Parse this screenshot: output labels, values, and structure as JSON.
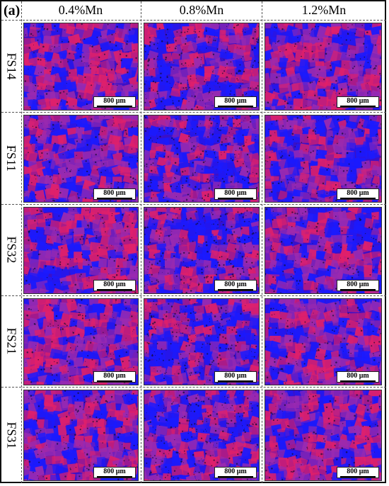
{
  "figure": {
    "panel_label": "(a)",
    "columns": [
      "0.4%Mn",
      "0.8%Mn",
      "1.2%Mn"
    ],
    "rows": [
      "FS14",
      "FS11",
      "FS32",
      "FS21",
      "FS31"
    ],
    "scale_bar_label": "800 μm",
    "colors": {
      "base_blue": "#3a10c8",
      "grain_blue": "#1a1aff",
      "grain_red": "#e0206a",
      "grain_magenta": "#9a2ab0",
      "dark_spot": "#120a30"
    }
  }
}
